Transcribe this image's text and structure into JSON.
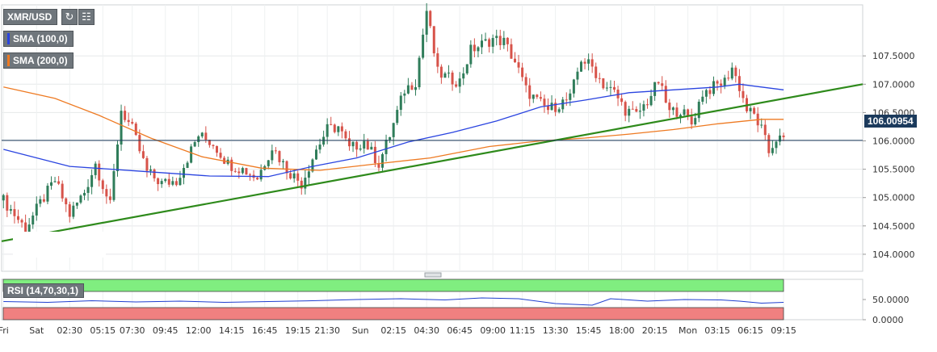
{
  "symbol_label": "XMR/USD",
  "legend": {
    "sma100": {
      "label": "SMA (100,0)",
      "color": "#2a44e0"
    },
    "sma200": {
      "label": "SMA (200,0)",
      "color": "#ee7a22"
    }
  },
  "toolbar": {
    "refresh_icon": "refresh-icon",
    "chart_style_icon": "bar-chart-icon"
  },
  "rsi_label": "RSI (14,70,30,1)",
  "current_price": "106.00954",
  "colors": {
    "up": "#2f7d5a",
    "down": "#d7534a",
    "trendline": "#2e8a1b",
    "sma100": "#2a44e0",
    "sma200": "#ee7a22",
    "price_line": "#1b3a5c",
    "rsi_over": "#80ee80",
    "rsi_under": "#f08080",
    "rsi_line": "#1f3fcf"
  },
  "chart_data": [
    {
      "type": "candlestick",
      "title": "XMR/USD",
      "ylim": [
        103.7,
        108.4
      ],
      "y_ticks": [
        "107.5000",
        "107.0000",
        "106.5000",
        "106.0000",
        "105.5000",
        "105.0000",
        "104.5000",
        "104.0000"
      ],
      "x_ticks": [
        "Fri",
        "Sat",
        "02:30",
        "05:15",
        "07:30",
        "09:45",
        "12:00",
        "14:15",
        "16:45",
        "19:15",
        "21:30",
        "Sun",
        "02:15",
        "04:30",
        "06:45",
        "09:00",
        "11:15",
        "13:30",
        "15:45",
        "18:00",
        "20:15",
        "Mon",
        "03:15",
        "06:15",
        "09:15"
      ],
      "close_path": [
        [
          0,
          104.95
        ],
        [
          6,
          104.45
        ],
        [
          10,
          104.9
        ],
        [
          14,
          105.3
        ],
        [
          18,
          104.7
        ],
        [
          22,
          105.1
        ],
        [
          25,
          105.6
        ],
        [
          29,
          104.85
        ],
        [
          32,
          106.55
        ],
        [
          35,
          106.2
        ],
        [
          39,
          105.45
        ],
        [
          43,
          105.25
        ],
        [
          47,
          105.3
        ],
        [
          50,
          105.7
        ],
        [
          53,
          106.1
        ],
        [
          57,
          105.95
        ],
        [
          61,
          105.6
        ],
        [
          65,
          105.5
        ],
        [
          69,
          105.35
        ],
        [
          73,
          105.9
        ],
        [
          77,
          105.5
        ],
        [
          81,
          105.25
        ],
        [
          85,
          105.85
        ],
        [
          88,
          106.2
        ],
        [
          91,
          106.25
        ],
        [
          94,
          105.85
        ],
        [
          98,
          106.0
        ],
        [
          102,
          105.6
        ],
        [
          105,
          106.1
        ],
        [
          109,
          106.9
        ],
        [
          112,
          107.05
        ],
        [
          115,
          108.3
        ],
        [
          118,
          107.2
        ],
        [
          121,
          107.1
        ],
        [
          124,
          107.05
        ],
        [
          127,
          107.6
        ],
        [
          130,
          107.7
        ],
        [
          133,
          107.8
        ],
        [
          136,
          107.75
        ],
        [
          139,
          107.4
        ],
        [
          142,
          106.9
        ],
        [
          145,
          106.7
        ],
        [
          148,
          106.55
        ],
        [
          151,
          106.65
        ],
        [
          154,
          106.75
        ],
        [
          157,
          107.45
        ],
        [
          160,
          107.3
        ],
        [
          163,
          107.0
        ],
        [
          166,
          106.85
        ],
        [
          169,
          106.55
        ],
        [
          172,
          106.45
        ],
        [
          175,
          106.7
        ],
        [
          178,
          107.05
        ],
        [
          181,
          106.5
        ],
        [
          184,
          106.55
        ],
        [
          187,
          106.3
        ],
        [
          190,
          106.85
        ],
        [
          193,
          106.95
        ],
        [
          196,
          107.05
        ],
        [
          198,
          107.3
        ],
        [
          200,
          106.95
        ],
        [
          202,
          106.55
        ],
        [
          204,
          106.45
        ],
        [
          206,
          106.2
        ],
        [
          208,
          105.8
        ],
        [
          210,
          106.05
        ],
        [
          212,
          106.0
        ]
      ],
      "sma100": [
        [
          0,
          105.85
        ],
        [
          18,
          105.55
        ],
        [
          36,
          105.47
        ],
        [
          56,
          105.38
        ],
        [
          72,
          105.37
        ],
        [
          84,
          105.55
        ],
        [
          96,
          105.7
        ],
        [
          110,
          105.98
        ],
        [
          122,
          106.15
        ],
        [
          134,
          106.35
        ],
        [
          146,
          106.6
        ],
        [
          158,
          106.72
        ],
        [
          170,
          106.85
        ],
        [
          182,
          106.9
        ],
        [
          194,
          106.95
        ],
        [
          200,
          107.0
        ],
        [
          206,
          106.95
        ],
        [
          212,
          106.9
        ]
      ],
      "sma200": [
        [
          0,
          106.95
        ],
        [
          14,
          106.75
        ],
        [
          26,
          106.45
        ],
        [
          40,
          106.05
        ],
        [
          54,
          105.72
        ],
        [
          70,
          105.52
        ],
        [
          86,
          105.48
        ],
        [
          102,
          105.6
        ],
        [
          116,
          105.7
        ],
        [
          132,
          105.9
        ],
        [
          146,
          106.0
        ],
        [
          158,
          106.05
        ],
        [
          170,
          106.12
        ],
        [
          182,
          106.2
        ],
        [
          194,
          106.3
        ],
        [
          206,
          106.38
        ],
        [
          212,
          106.38
        ]
      ],
      "trendline": [
        [
          0,
          104.23
        ],
        [
          234,
          107.0
        ]
      ]
    },
    {
      "type": "line",
      "title": "RSI (14,70,30,1)",
      "ylim": [
        0,
        100
      ],
      "y_ticks": [
        "50.0000",
        "0.0000"
      ],
      "overbought": 70,
      "oversold": 30,
      "values": [
        [
          0,
          45
        ],
        [
          12,
          43
        ],
        [
          24,
          47
        ],
        [
          36,
          44
        ],
        [
          48,
          46
        ],
        [
          60,
          43
        ],
        [
          72,
          45
        ],
        [
          84,
          47
        ],
        [
          96,
          50
        ],
        [
          108,
          52
        ],
        [
          120,
          49
        ],
        [
          130,
          54
        ],
        [
          140,
          52
        ],
        [
          150,
          40
        ],
        [
          160,
          36
        ],
        [
          165,
          52
        ],
        [
          175,
          46
        ],
        [
          185,
          50
        ],
        [
          195,
          49
        ],
        [
          200,
          46
        ],
        [
          206,
          41
        ],
        [
          212,
          43
        ]
      ]
    }
  ]
}
